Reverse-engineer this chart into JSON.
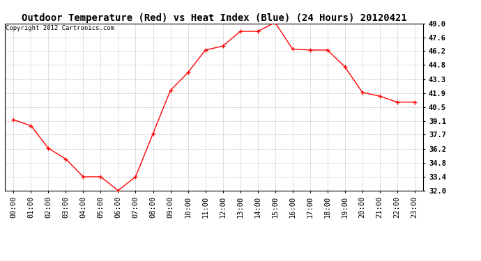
{
  "title": "Outdoor Temperature (Red) vs Heat Index (Blue) (24 Hours) 20120421",
  "copyright_text": "Copyright 2012 Cartronics.com",
  "x_labels": [
    "00:00",
    "01:00",
    "02:00",
    "03:00",
    "04:00",
    "05:00",
    "06:00",
    "07:00",
    "08:00",
    "09:00",
    "10:00",
    "11:00",
    "12:00",
    "13:00",
    "14:00",
    "15:00",
    "16:00",
    "17:00",
    "18:00",
    "19:00",
    "20:00",
    "21:00",
    "22:00",
    "23:00"
  ],
  "red_values": [
    39.2,
    38.6,
    36.3,
    35.2,
    33.4,
    33.4,
    32.0,
    33.4,
    37.8,
    42.2,
    44.0,
    46.3,
    46.7,
    48.2,
    48.2,
    49.1,
    46.4,
    46.3,
    46.3,
    44.6,
    42.0,
    41.6,
    41.0,
    41.0
  ],
  "blue_values": [],
  "y_min": 32.0,
  "y_max": 49.0,
  "y_ticks": [
    32.0,
    33.4,
    34.8,
    36.2,
    37.7,
    39.1,
    40.5,
    41.9,
    43.3,
    44.8,
    46.2,
    47.6,
    49.0
  ],
  "line_color_red": "#FF0000",
  "line_color_blue": "#0000FF",
  "background_color": "#FFFFFF",
  "grid_color": "#BBBBBB",
  "title_fontsize": 10,
  "copyright_fontsize": 6.5,
  "tick_fontsize": 7.5
}
